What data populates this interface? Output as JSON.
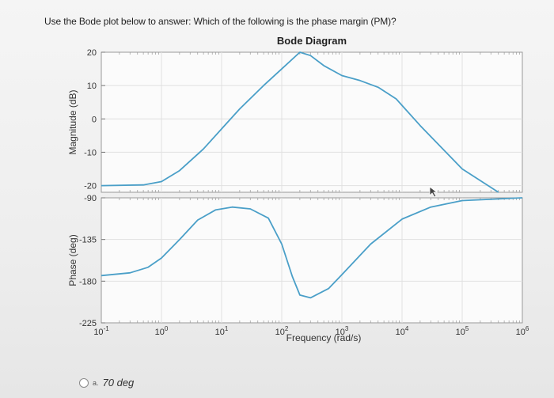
{
  "question": {
    "text": "Use the Bode plot below to answer: Which of the following is the phase margin (PM)?"
  },
  "chart_data": {
    "type": "line",
    "title": "Bode Diagram",
    "xlabel": "Frequency (rad/s)",
    "x_scale": "log",
    "xlim": [
      0.1,
      1000000
    ],
    "x_ticks": [
      {
        "value": 0.1,
        "base": "10",
        "exp": "-1"
      },
      {
        "value": 1,
        "base": "10",
        "exp": "0"
      },
      {
        "value": 10,
        "base": "10",
        "exp": "1"
      },
      {
        "value": 100,
        "base": "10",
        "exp": "2"
      },
      {
        "value": 1000,
        "base": "10",
        "exp": "3"
      },
      {
        "value": 10000,
        "base": "10",
        "exp": "4"
      },
      {
        "value": 100000,
        "base": "10",
        "exp": "5"
      },
      {
        "value": 1000000,
        "base": "10",
        "exp": "6"
      }
    ],
    "grid": true,
    "line_color": "#4a9fc8",
    "panels": [
      {
        "ylabel": "Magnitude (dB)",
        "ylim": [
          -22,
          20
        ],
        "y_ticks": [
          20,
          10,
          0,
          -10,
          -20
        ],
        "points": [
          [
            0.1,
            -20
          ],
          [
            0.5,
            -19.8
          ],
          [
            1,
            -18.8
          ],
          [
            2,
            -15.5
          ],
          [
            5,
            -9
          ],
          [
            10,
            -3
          ],
          [
            20,
            3
          ],
          [
            50,
            10
          ],
          [
            100,
            15
          ],
          [
            200,
            20
          ],
          [
            300,
            19
          ],
          [
            500,
            16
          ],
          [
            1000,
            13
          ],
          [
            2000,
            11.5
          ],
          [
            4000,
            9.5
          ],
          [
            8000,
            6
          ],
          [
            20000,
            -2
          ],
          [
            100000,
            -15
          ],
          [
            400000,
            -22
          ]
        ]
      },
      {
        "ylabel": "Phase (deg)",
        "ylim": [
          -225,
          -90
        ],
        "y_ticks": [
          -90,
          -135,
          -180,
          -225
        ],
        "points": [
          [
            0.1,
            -174
          ],
          [
            0.3,
            -171
          ],
          [
            0.6,
            -165
          ],
          [
            1,
            -155
          ],
          [
            2,
            -135
          ],
          [
            4,
            -114
          ],
          [
            8,
            -103
          ],
          [
            15,
            -100
          ],
          [
            30,
            -102
          ],
          [
            60,
            -112
          ],
          [
            100,
            -140
          ],
          [
            150,
            -175
          ],
          [
            200,
            -195
          ],
          [
            300,
            -198
          ],
          [
            600,
            -188
          ],
          [
            1000,
            -173
          ],
          [
            3000,
            -140
          ],
          [
            10000,
            -113
          ],
          [
            30000,
            -100
          ],
          [
            100000,
            -93
          ],
          [
            1000000,
            -90
          ]
        ]
      }
    ]
  },
  "options": [
    {
      "letter": "a.",
      "text": "70 deg"
    }
  ]
}
